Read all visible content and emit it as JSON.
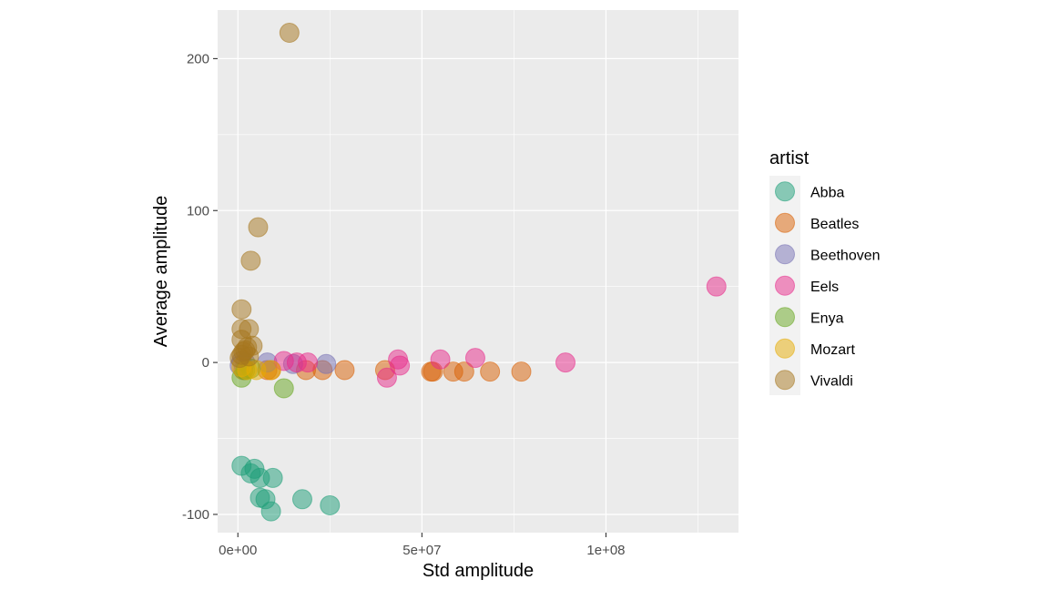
{
  "chart_data": {
    "type": "scatter",
    "xlabel": "Std amplitude",
    "ylabel": "Average amplitude",
    "xlim": [
      -5500000,
      136000000
    ],
    "ylim": [
      -112,
      232
    ],
    "x_ticks": [
      {
        "value": 0,
        "label": "0e+00"
      },
      {
        "value": 50000000,
        "label": "5e+07"
      },
      {
        "value": 100000000,
        "label": "1e+08"
      }
    ],
    "y_ticks": [
      {
        "value": -100,
        "label": "-100"
      },
      {
        "value": 0,
        "label": "0"
      },
      {
        "value": 100,
        "label": "100"
      },
      {
        "value": 200,
        "label": "200"
      }
    ],
    "grid": true,
    "legend": {
      "title": "artist",
      "position": "right"
    },
    "series": [
      {
        "name": "Abba",
        "color": "#1B9E77",
        "points": [
          [
            1000000,
            -68
          ],
          [
            3500000,
            -73
          ],
          [
            4500000,
            -70
          ],
          [
            6000000,
            -76
          ],
          [
            9500000,
            -76
          ],
          [
            6000000,
            -89
          ],
          [
            7500000,
            -90
          ],
          [
            9000000,
            -98
          ],
          [
            17500000,
            -90
          ],
          [
            25000000,
            -94
          ]
        ]
      },
      {
        "name": "Beatles",
        "color": "#D95F02",
        "points": [
          [
            1500000,
            -5
          ],
          [
            8000000,
            -5
          ],
          [
            9000000,
            -5
          ],
          [
            18500000,
            -5
          ],
          [
            23000000,
            -5
          ],
          [
            29000000,
            -5
          ],
          [
            40000000,
            -5
          ],
          [
            52500000,
            -6
          ],
          [
            53000000,
            -6
          ],
          [
            58500000,
            -6
          ],
          [
            61500000,
            -6
          ],
          [
            68500000,
            -6
          ],
          [
            77000000,
            -6
          ]
        ]
      },
      {
        "name": "Beethoven",
        "color": "#7570B3",
        "points": [
          [
            500000,
            -2
          ],
          [
            1000000,
            1
          ],
          [
            2000000,
            0
          ],
          [
            8000000,
            0
          ],
          [
            15000000,
            -1
          ],
          [
            24000000,
            -1
          ]
        ]
      },
      {
        "name": "Eels",
        "color": "#E7298A",
        "points": [
          [
            12500000,
            1
          ],
          [
            16000000,
            0
          ],
          [
            19000000,
            0
          ],
          [
            40500000,
            -10
          ],
          [
            43500000,
            2
          ],
          [
            44000000,
            -2
          ],
          [
            55000000,
            2
          ],
          [
            64500000,
            3
          ],
          [
            89000000,
            0
          ],
          [
            130000000,
            50
          ]
        ]
      },
      {
        "name": "Enya",
        "color": "#66A61E",
        "points": [
          [
            1000000,
            -10
          ],
          [
            2000000,
            -5
          ],
          [
            3500000,
            -4
          ],
          [
            12500000,
            -17
          ]
        ]
      },
      {
        "name": "Mozart",
        "color": "#E6AB02",
        "points": [
          [
            1000000,
            -3
          ],
          [
            2500000,
            -5
          ],
          [
            5000000,
            -5
          ],
          [
            9000000,
            -5
          ]
        ]
      },
      {
        "name": "Vivaldi",
        "color": "#A6761D",
        "points": [
          [
            14000000,
            217
          ],
          [
            5500000,
            89
          ],
          [
            3500000,
            67
          ],
          [
            1000000,
            35
          ],
          [
            1000000,
            22
          ],
          [
            3000000,
            22
          ],
          [
            1000000,
            15
          ],
          [
            4000000,
            11
          ],
          [
            1500000,
            7
          ],
          [
            2500000,
            10
          ],
          [
            500000,
            3
          ],
          [
            1000000,
            5
          ],
          [
            3000000,
            4
          ],
          [
            2000000,
            8
          ]
        ]
      }
    ]
  }
}
